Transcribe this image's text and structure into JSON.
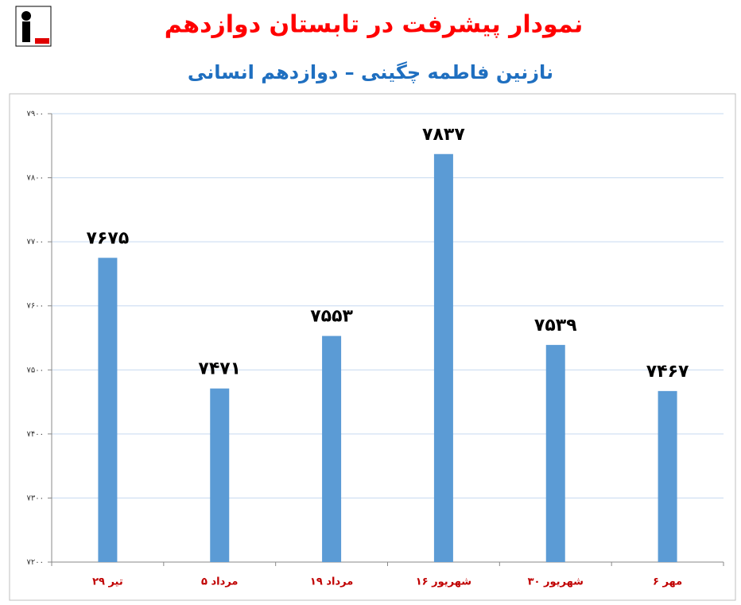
{
  "chart_data": {
    "type": "bar",
    "title": "نمودار پیشرفت در تابستان دوازدهم",
    "subtitle": "نازنین فاطمه چگینی – دوازدهم انسانی",
    "categories": [
      "۲۹ تیر",
      "۵ مرداد",
      "۱۹ مرداد",
      "۱۶ شهریور",
      "۳۰ شهریور",
      "۶ مهر"
    ],
    "values": [
      7675,
      7471,
      7553,
      7837,
      7539,
      7467
    ],
    "value_labels": [
      "۷۶۷۵",
      "۷۴۷۱",
      "۷۵۵۳",
      "۷۸۳۷",
      "۷۵۳۹",
      "۷۴۶۷"
    ],
    "color": "#5b9bd5",
    "ylim": [
      7200,
      7900
    ],
    "yticks": [
      {
        "value": 7200,
        "label": "۷۲۰۰"
      },
      {
        "value": 7300,
        "label": "۷۳۰۰"
      },
      {
        "value": 7400,
        "label": "۷۴۰۰"
      },
      {
        "value": 7500,
        "label": "۷۵۰۰"
      },
      {
        "value": 7600,
        "label": "۷۶۰۰"
      },
      {
        "value": 7700,
        "label": "۷۷۰۰"
      },
      {
        "value": 7800,
        "label": "۷۸۰۰"
      },
      {
        "value": 7900,
        "label": "۷۹۰۰"
      }
    ],
    "grid": true
  }
}
